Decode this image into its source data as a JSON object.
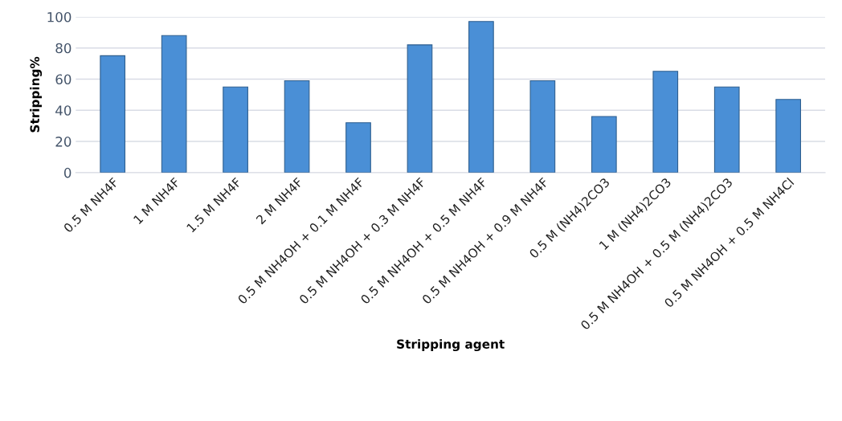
{
  "chart_data": {
    "type": "bar",
    "xlabel": "Stripping agent",
    "ylabel": "Stripping%",
    "categories": [
      "0.5 M NH4F",
      "1 M NH4F",
      "1.5 M NH4F",
      "2 M NH4F",
      "0.5 M NH4OH + 0.1 M NH4F",
      "0.5 M NH4OH + 0.3 M NH4F",
      "0.5 M NH4OH + 0.5 M NH4F",
      "0.5 M NH4OH + 0.9 M NH4F",
      "0.5 M (NH4)2CO3",
      "1 M (NH4)2CO3",
      "0.5 M NH4OH + 0.5 M (NH4)2CO3",
      "0.5 M NH4OH + 0.5 M NH4Cl"
    ],
    "values": [
      75,
      88,
      55,
      59,
      32,
      82,
      97,
      59,
      36,
      65,
      55,
      47
    ],
    "color": "#4a8fd6",
    "ylim": [
      0,
      100
    ],
    "yticks": [
      0,
      20,
      40,
      60,
      80,
      100
    ],
    "grid": "y"
  }
}
